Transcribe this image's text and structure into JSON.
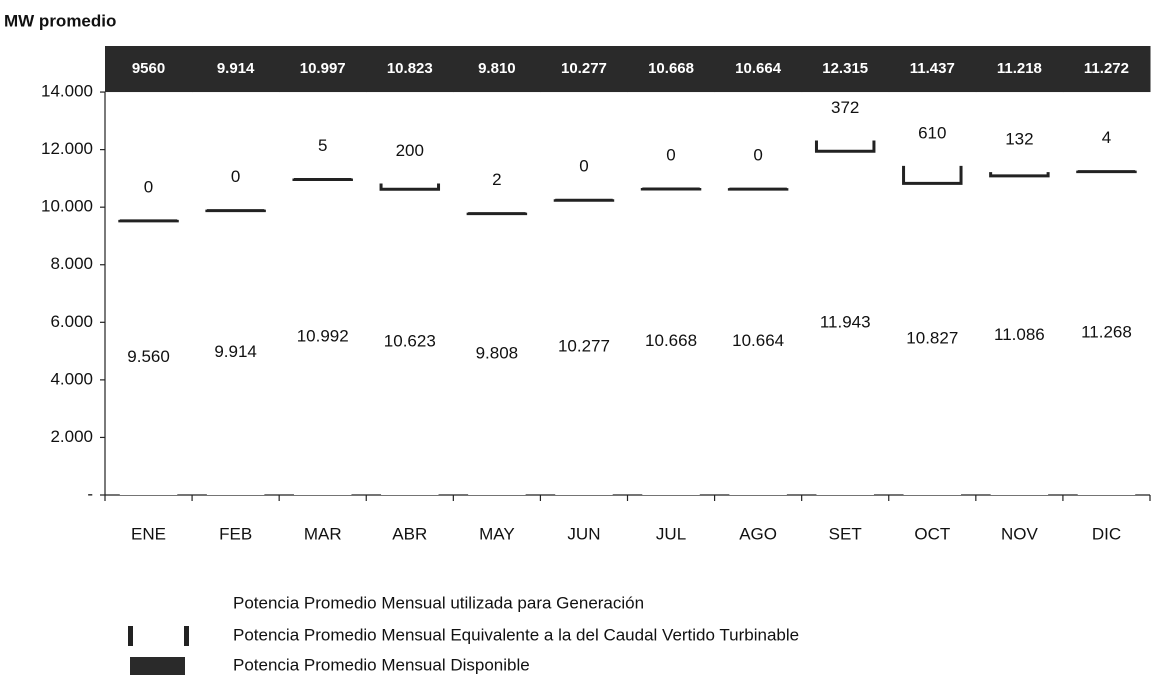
{
  "chart_data": {
    "type": "bar",
    "ylabel": "MW promedio",
    "categories": [
      "ENE",
      "FEB",
      "MAR",
      "ABR",
      "MAY",
      "JUN",
      "JUL",
      "AGO",
      "SET",
      "OCT",
      "NOV",
      "DIC"
    ],
    "series": [
      {
        "name": "Potencia Promedio Mensual utilizada para Generación",
        "color": "#ffffff",
        "values": [
          9560,
          9914,
          10992,
          10623,
          9808,
          10277,
          10668,
          10664,
          11943,
          10827,
          11086,
          11268
        ],
        "value_labels": [
          "9.560",
          "9.914",
          "10.992",
          "10.623",
          "9.808",
          "10.277",
          "10.668",
          "10.664",
          "11.943",
          "10.827",
          "11.086",
          "11.268"
        ]
      },
      {
        "name": "Potencia Promedio Mensual Equivalente a la del Caudal Vertido Turbinable",
        "color": "#222222",
        "values": [
          0,
          0,
          5,
          200,
          2,
          0,
          0,
          0,
          372,
          610,
          132,
          4
        ]
      },
      {
        "name": "Potencia Promedio Mensual Disponible",
        "color": "#2a2a2a",
        "values": [
          9560,
          9914,
          10997,
          10823,
          9810,
          10277,
          10668,
          10664,
          12315,
          11437,
          11218,
          11272
        ],
        "value_labels": [
          "9560",
          "9.914",
          "10.997",
          "10.823",
          "9.810",
          "10.277",
          "10.668",
          "10.664",
          "12.315",
          "11.437",
          "11.218",
          "11.272"
        ]
      }
    ],
    "ylim": [
      0,
      15600
    ],
    "yticks": [
      {
        "value": 0,
        "label": "-"
      },
      {
        "value": 2000,
        "label": "2.000"
      },
      {
        "value": 4000,
        "label": "4.000"
      },
      {
        "value": 6000,
        "label": "6.000"
      },
      {
        "value": 8000,
        "label": "8.000"
      },
      {
        "value": 10000,
        "label": "10.000"
      },
      {
        "value": 12000,
        "label": "12.000"
      },
      {
        "value": 14000,
        "label": "14.000"
      }
    ]
  }
}
